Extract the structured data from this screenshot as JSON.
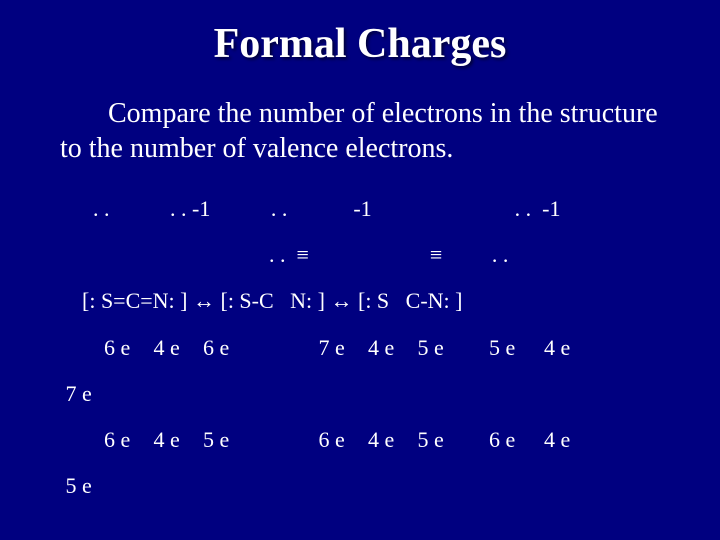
{
  "background_color": "#000080",
  "text_color": "#ffffff",
  "title": "Formal Charges",
  "intro": "Compare the number of electrons in the structure to the number of valence electrons.",
  "dots_line": "      . .           . . -1           . .            -1                          . .  -1",
  "dots_line2": "                                      . .  ≡                      ≡         . .",
  "formula": "    [: S=C=N: ] ↔ [: S-C   N: ] ↔ [: S   C-N: ]",
  "row1": {
    "prefix": "",
    "e": [
      "6 e",
      "4 e",
      "6 e",
      "",
      "7 e",
      "4 e",
      "5 e",
      "",
      "5 e",
      "4 e"
    ]
  },
  "left1": "7 e",
  "row2": {
    "prefix": "",
    "e": [
      "6 e",
      "4 e",
      "5 e",
      "",
      "6 e",
      "4 e",
      "5 e",
      "",
      "6 e",
      "4 e"
    ]
  },
  "left2": "5 e"
}
